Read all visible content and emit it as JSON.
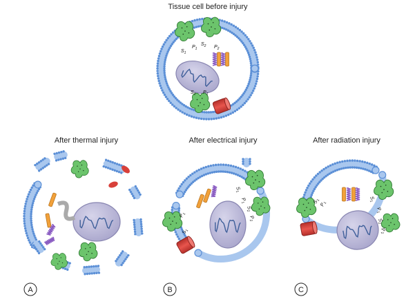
{
  "titles": {
    "top": "Tissue cell before injury",
    "thermal": "After thermal injury",
    "electrical": "After electrical injury",
    "radiation": "After radiation injury"
  },
  "panel_labels": {
    "a": "A",
    "b": "B",
    "c": "C"
  },
  "receptor_labels": {
    "s1": "S",
    "s1_sub": "1",
    "p1": "P",
    "p1_sub": "1",
    "s2": "S",
    "s2_sub": "2",
    "p2": "P",
    "p2_sub": "2"
  },
  "colors": {
    "membrane_blue": "#5b8fd6",
    "membrane_light": "#a9c7ee",
    "nucleus_fill": "#b9b6d6",
    "nucleus_stroke": "#8784b0",
    "dna": "#3f5f9a",
    "receptor_green": "#6cc46c",
    "receptor_dark": "#2f7a32",
    "channel_red": "#d8403a",
    "orange_protein": "#f2a13a",
    "purple_helix": "#8a5cc2"
  }
}
